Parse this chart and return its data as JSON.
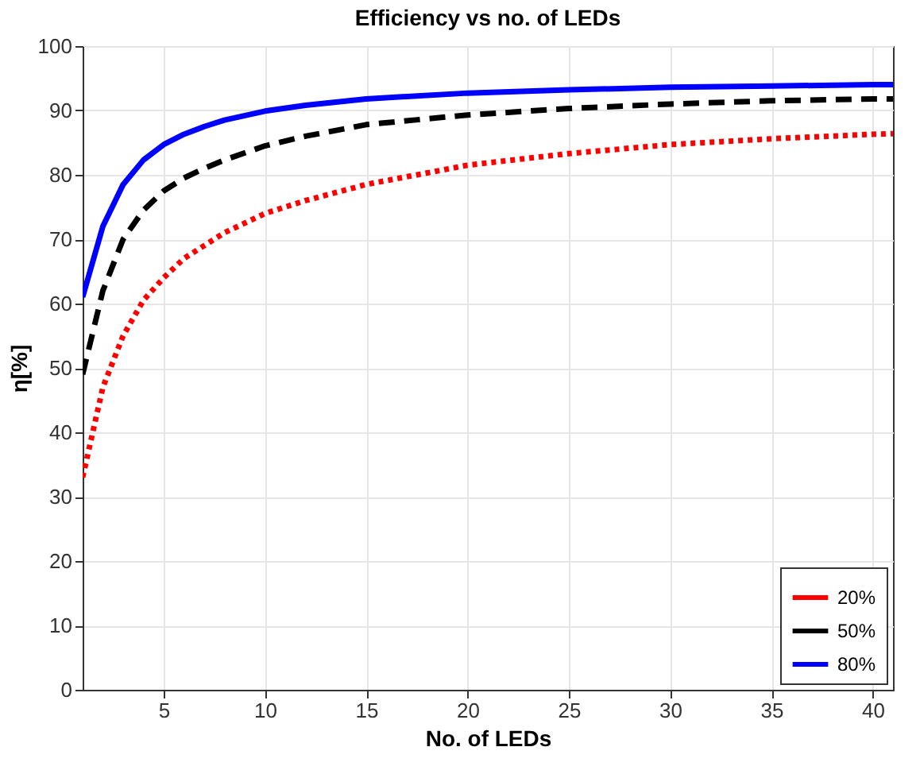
{
  "chart_data": {
    "type": "line",
    "title": "Efficiency vs no. of LEDs",
    "xlabel": "No. of LEDs",
    "ylabel": "η[%]",
    "x": [
      1,
      2,
      3,
      4,
      5,
      6,
      7,
      8,
      10,
      12,
      15,
      20,
      25,
      30,
      35,
      40,
      41
    ],
    "series": [
      {
        "name": "20%",
        "color": "#ff0000",
        "line_style": "dotted",
        "values": [
          33,
          47,
          55,
          60.5,
          64,
          67,
          69,
          71,
          74,
          76,
          78.5,
          81.5,
          83.3,
          84.7,
          85.6,
          86.3,
          86.4
        ]
      },
      {
        "name": "50%",
        "color": "#000000",
        "line_style": "dashed",
        "values": [
          49,
          62,
          70,
          74.5,
          77.5,
          79.5,
          81,
          82.3,
          84.5,
          86,
          87.8,
          89.3,
          90.3,
          91,
          91.5,
          91.8,
          91.8
        ]
      },
      {
        "name": "80%",
        "color": "#0000ff",
        "line_style": "solid",
        "values": [
          61,
          72,
          78.5,
          82.3,
          84.7,
          86.3,
          87.5,
          88.5,
          89.9,
          90.8,
          91.8,
          92.7,
          93.2,
          93.6,
          93.8,
          94,
          94
        ]
      }
    ],
    "xlim": [
      1,
      41
    ],
    "xticks": [
      5,
      10,
      15,
      20,
      25,
      30,
      35,
      40
    ],
    "ylim": [
      0,
      100
    ],
    "yticks": [
      0,
      10,
      20,
      30,
      40,
      50,
      60,
      70,
      80,
      90,
      100
    ],
    "grid": true,
    "legend": "bottom right"
  }
}
